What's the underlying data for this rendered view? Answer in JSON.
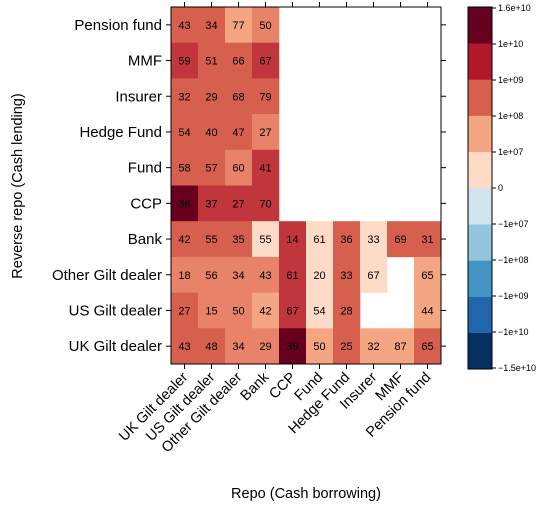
{
  "chart_data": {
    "type": "heatmap",
    "xlabel": "Repo (Cash borrowing)",
    "ylabel": "Reverse repo (Cash lending)",
    "x_categories": [
      "UK Gilt dealer",
      "US Gilt dealer",
      "Other Gilt dealer",
      "Bank",
      "CCP",
      "Fund",
      "Hedge Fund",
      "Insurer",
      "MMF",
      "Pension fund"
    ],
    "y_categories_top_to_bottom": [
      "Pension fund",
      "MMF",
      "Insurer",
      "Hedge Fund",
      "Fund",
      "CCP",
      "Bank",
      "Other Gilt dealer",
      "US Gilt dealer",
      "UK Gilt dealer"
    ],
    "cells": [
      [
        "43",
        "34",
        "77",
        "50",
        "",
        "",
        "",
        "",
        "",
        ""
      ],
      [
        "59",
        "51",
        "66",
        "67",
        "",
        "",
        "",
        "",
        "",
        ""
      ],
      [
        "32",
        "29",
        "68",
        "79",
        "",
        "",
        "",
        "",
        "",
        ""
      ],
      [
        "54",
        "40",
        "47",
        "27",
        "",
        "",
        "",
        "",
        "",
        ""
      ],
      [
        "58",
        "57",
        "60",
        "41",
        "",
        "",
        "",
        "",
        "",
        ""
      ],
      [
        "36",
        "37",
        "27",
        "70",
        "",
        "",
        "",
        "",
        "",
        ""
      ],
      [
        "42",
        "55",
        "35",
        "55",
        "14",
        "61",
        "36",
        "33",
        "69",
        "31"
      ],
      [
        "18",
        "56",
        "34",
        "43",
        "61",
        "20",
        "33",
        "67",
        "",
        "65"
      ],
      [
        "27",
        "15",
        "50",
        "42",
        "67",
        "54",
        "28",
        "",
        "",
        "44"
      ],
      [
        "43",
        "48",
        "34",
        "29",
        "39",
        "50",
        "25",
        "32",
        "87",
        "65"
      ]
    ],
    "color_levels": [
      [
        4,
        4,
        2,
        3,
        null,
        null,
        null,
        null,
        null,
        null
      ],
      [
        5,
        4,
        4,
        5,
        null,
        null,
        null,
        null,
        null,
        null
      ],
      [
        4,
        4,
        4,
        4,
        null,
        null,
        null,
        null,
        null,
        null
      ],
      [
        4,
        4,
        4,
        3,
        null,
        null,
        null,
        null,
        null,
        null
      ],
      [
        4,
        4,
        3,
        5,
        null,
        null,
        null,
        null,
        null,
        null
      ],
      [
        7,
        5,
        5,
        5,
        null,
        null,
        null,
        null,
        null,
        null
      ],
      [
        4,
        4,
        4,
        1,
        5,
        1,
        4,
        1,
        4,
        4
      ],
      [
        3,
        3,
        3,
        3,
        5,
        1,
        4,
        1,
        null,
        2
      ],
      [
        4,
        3,
        3,
        2,
        5,
        1,
        4,
        null,
        null,
        2
      ],
      [
        4,
        4,
        3,
        3,
        7,
        2,
        4,
        2,
        2,
        4
      ]
    ],
    "colorbar": {
      "tick_labels": [
        "1.6e+10",
        "1e+10",
        "1e+09",
        "1e+08",
        "1e+07",
        "0",
        "−1e+07",
        "−1e+08",
        "−1e+09",
        "−1e+10",
        "−1.5e+10"
      ],
      "colors": [
        "#053061",
        "#2166ac",
        "#4393c3",
        "#92c5de",
        "#d1e5f0",
        "#fddbc7",
        "#f4a582",
        "#d6604d",
        "#b2182b",
        "#67001f"
      ]
    },
    "grid": false
  }
}
